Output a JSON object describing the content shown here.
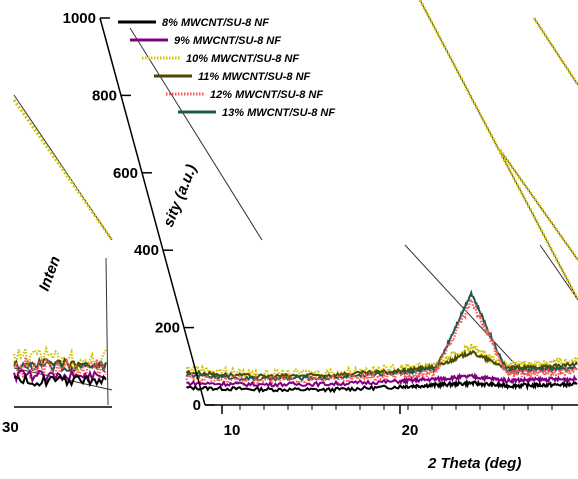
{
  "chart_data": {
    "type": "line",
    "view": "3d-waterfall",
    "xlabel": "2 Theta (deg)",
    "ylabel_fragments": [
      "Inten",
      "sity (a.u.)"
    ],
    "x_ticks": [
      10,
      20
    ],
    "x_tick_partial": "30",
    "y_ticks": [
      0,
      200,
      400,
      600,
      800,
      1000
    ],
    "ylim": [
      0,
      1000
    ],
    "legend_position": "top-left",
    "series": [
      {
        "name": "8% MWCNT/SU-8 NF",
        "color": "#000000",
        "style": "solid",
        "x": [
          8,
          12,
          16,
          20,
          22,
          24,
          26,
          28,
          30
        ],
        "y": [
          38,
          32,
          30,
          42,
          48,
          55,
          45,
          48,
          50
        ]
      },
      {
        "name": "9% MWCNT/SU-8 NF",
        "color": "#800080",
        "style": "solid",
        "x": [
          8,
          12,
          16,
          20,
          22,
          24,
          26,
          28,
          30
        ],
        "y": [
          55,
          50,
          52,
          62,
          70,
          80,
          65,
          68,
          70
        ]
      },
      {
        "name": "10% MWCNT/SU-8 NF",
        "color": "#d4c400",
        "style": "dotted",
        "x": [
          8,
          12,
          16,
          20,
          22,
          24,
          26,
          28,
          30
        ],
        "y": [
          110,
          90,
          95,
          110,
          125,
          190,
          120,
          130,
          140
        ]
      },
      {
        "name": "11% MWCNT/SU-8 NF",
        "color": "#4a4a00",
        "style": "solid",
        "x": [
          8,
          12,
          16,
          20,
          22,
          24,
          26,
          28,
          30
        ],
        "y": [
          95,
          80,
          85,
          100,
          115,
          170,
          110,
          115,
          125
        ]
      },
      {
        "name": "12% MWCNT/SU-8 NF",
        "color": "#ff5555",
        "style": "dotted",
        "x": [
          8,
          12,
          16,
          20,
          22,
          24,
          26,
          28,
          30
        ],
        "y": [
          75,
          65,
          68,
          80,
          95,
          360,
          90,
          95,
          100
        ]
      },
      {
        "name": "13% MWCNT/SU-8 NF",
        "color": "#1e5a4a",
        "style": "solid",
        "x": [
          8,
          12,
          16,
          20,
          22,
          24,
          26,
          28,
          30
        ],
        "y": [
          85,
          70,
          75,
          95,
          105,
          390,
          100,
          105,
          110
        ]
      }
    ]
  }
}
